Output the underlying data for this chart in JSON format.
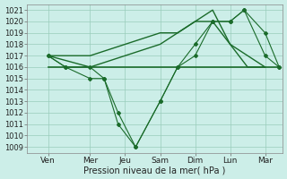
{
  "xlabel": "Pression niveau de la mer( hPa )",
  "ylim_min": 1008.5,
  "ylim_max": 1021.5,
  "xlim_min": -0.3,
  "xlim_max": 7.0,
  "yticks": [
    1009,
    1010,
    1011,
    1012,
    1013,
    1014,
    1015,
    1016,
    1017,
    1018,
    1019,
    1020,
    1021
  ],
  "xtick_positions": [
    0.3,
    1.5,
    2.5,
    3.5,
    4.5,
    5.5,
    6.5
  ],
  "xtick_labels": [
    "Ven",
    "Mer",
    "Jeu",
    "Sam",
    "Dim",
    "Lun",
    "Mar"
  ],
  "vline_positions": [
    0.3,
    1.5,
    2.5,
    3.5,
    4.5,
    5.5,
    6.5
  ],
  "bg_color": "#cceee8",
  "grid_color": "#99ccbb",
  "line_color": "#1a6b2a",
  "series": [
    {
      "x": [
        0.3,
        0.8,
        1.5,
        1.9,
        2.3,
        2.8,
        3.5,
        4.0,
        4.5,
        5.0,
        5.5,
        5.9,
        6.5,
        6.9
      ],
      "y": [
        1017,
        1016,
        1016,
        1015,
        1011,
        1009,
        1013,
        1016,
        1018,
        1020,
        1020,
        1021,
        1017,
        1016
      ],
      "marker": "D",
      "markersize": 2.0,
      "linewidth": 0.8,
      "zorder": 3
    },
    {
      "x": [
        0.3,
        0.8,
        1.5,
        1.9,
        2.3,
        2.8,
        3.5,
        4.0,
        4.5,
        5.0,
        5.5,
        5.9,
        6.5,
        6.9
      ],
      "y": [
        1017,
        1016,
        1015,
        1015,
        1012,
        1009,
        1013,
        1016,
        1017,
        1020,
        1020,
        1021,
        1019,
        1016
      ],
      "marker": "D",
      "markersize": 2.0,
      "linewidth": 0.8,
      "zorder": 3
    },
    {
      "x": [
        0.3,
        1.5,
        2.5,
        3.5,
        4.0,
        4.5,
        5.0,
        5.5,
        6.0,
        6.5
      ],
      "y": [
        1017,
        1017,
        1018,
        1019,
        1019,
        1020,
        1021,
        1018,
        1017,
        1016
      ],
      "marker": null,
      "markersize": 0,
      "linewidth": 1.0,
      "zorder": 2
    },
    {
      "x": [
        0.3,
        1.5,
        2.5,
        3.5,
        4.0,
        4.5,
        5.0,
        5.5,
        6.0,
        6.5
      ],
      "y": [
        1017,
        1016,
        1017,
        1018,
        1019,
        1020,
        1020,
        1018,
        1016,
        1016
      ],
      "marker": null,
      "markersize": 0,
      "linewidth": 1.0,
      "zorder": 2
    },
    {
      "x": [
        0.3,
        6.9
      ],
      "y": [
        1016,
        1016
      ],
      "marker": null,
      "markersize": 0,
      "linewidth": 1.2,
      "zorder": 2
    }
  ],
  "xlabel_fontsize": 7,
  "ytick_fontsize": 6,
  "xtick_fontsize": 6.5
}
